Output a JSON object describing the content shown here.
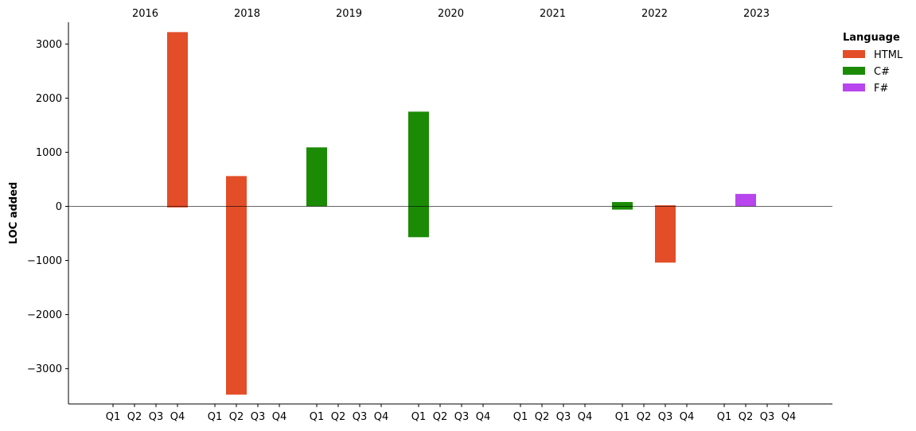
{
  "chart_data": {
    "type": "bar",
    "ylabel": "LOC added",
    "legend": {
      "title": "Language",
      "position": "top-right",
      "entries": [
        "HTML",
        "C#",
        "F#"
      ]
    },
    "years": [
      "2016",
      "2018",
      "2019",
      "2020",
      "2021",
      "2022",
      "2023"
    ],
    "quarters": [
      "Q1",
      "Q2",
      "Q3",
      "Q4"
    ],
    "yticks": [
      3000,
      2000,
      1000,
      0,
      -1000,
      -2000,
      -3000
    ],
    "ylim": [
      -3650,
      3400
    ],
    "zero_line": true,
    "grid": false,
    "series": [
      {
        "name": "HTML",
        "color": "#e34e29",
        "bars": [
          {
            "year": "2016",
            "quarter": "Q4",
            "positive": 3220,
            "negative": -20
          },
          {
            "year": "2018",
            "quarter": "Q2",
            "positive": 560,
            "negative": -3480
          },
          {
            "year": "2022",
            "quarter": "Q3",
            "positive": 20,
            "negative": -1040
          }
        ]
      },
      {
        "name": "C#",
        "color": "#1b8b06",
        "bars": [
          {
            "year": "2019",
            "quarter": "Q1",
            "positive": 1090,
            "negative": 0
          },
          {
            "year": "2020",
            "quarter": "Q1",
            "positive": 1750,
            "negative": -570
          },
          {
            "year": "2022",
            "quarter": "Q1",
            "positive": 80,
            "negative": -60
          }
        ]
      },
      {
        "name": "F#",
        "color": "#b845ee",
        "bars": [
          {
            "year": "2023",
            "quarter": "Q2",
            "positive": 230,
            "negative": 0
          }
        ]
      }
    ]
  }
}
